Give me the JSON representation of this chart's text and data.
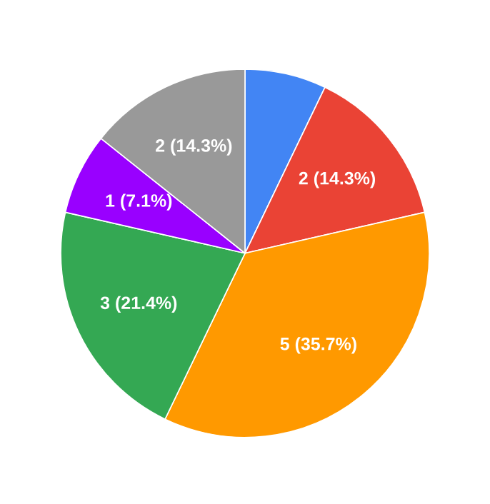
{
  "chart_data": {
    "type": "pie",
    "categories": [
      null,
      null,
      null,
      null,
      null,
      null
    ],
    "values": [
      1,
      2,
      5,
      3,
      1,
      2
    ],
    "colors": [
      "#4285f4",
      "#ea4335",
      "#ff9900",
      "#34a853",
      "#9900ff",
      "#999999"
    ],
    "value_labels": [
      null,
      "2 (14.3%)",
      "5 (35.7%)",
      "3 (21.4%)",
      "1 (7.1%)",
      "2 (14.3%)"
    ]
  }
}
